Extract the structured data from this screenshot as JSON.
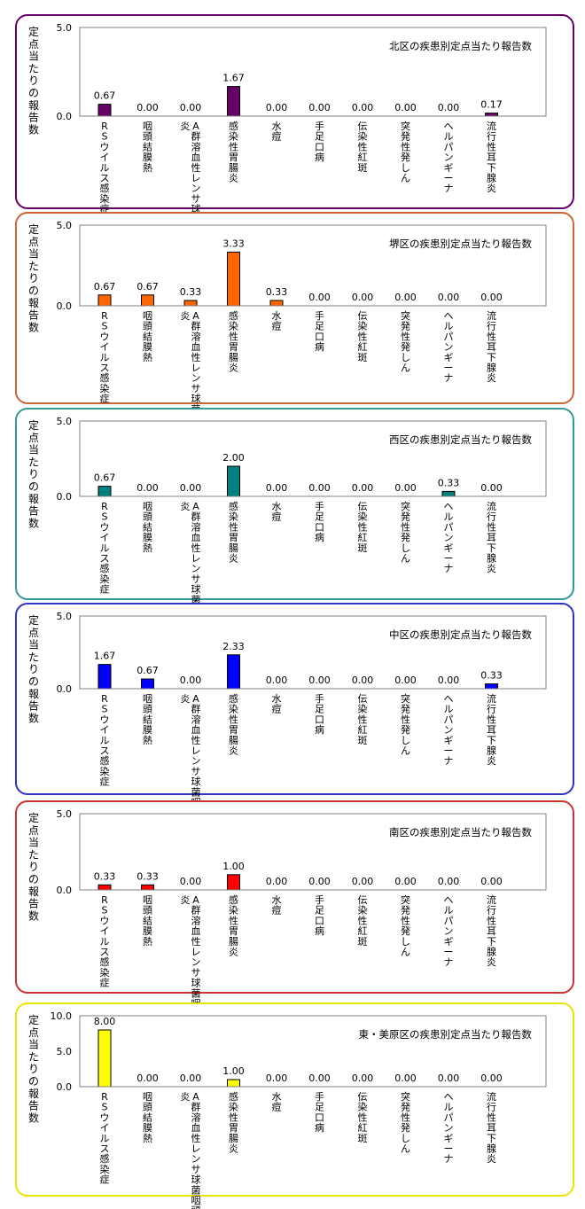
{
  "chart_data": [
    {
      "type": "bar",
      "title": "北区の疾患別定点当たり報告数",
      "ylabel": "定点当たりの報告数",
      "color": "#660066",
      "ylim": [
        0,
        5.0
      ],
      "yticks": [
        "0.0",
        "5.0"
      ],
      "categories": [
        "RSウイルス感染症",
        "咽頭結膜熱",
        "A群溶血性レンサ球菌咽頭炎",
        "感染性胃腸炎",
        "水痘",
        "手足口病",
        "伝染性紅斑",
        "突発性発しん",
        "ヘルパンギーナ",
        "流行性耳下腺炎"
      ],
      "values": [
        0.67,
        0.0,
        0.0,
        1.67,
        0.0,
        0.0,
        0.0,
        0.0,
        0.0,
        0.17
      ],
      "value_labels": [
        "0.67",
        "0.00",
        "0.00",
        "1.67",
        "0.00",
        "0.00",
        "0.00",
        "0.00",
        "0.00",
        "0.17"
      ]
    },
    {
      "type": "bar",
      "title": "堺区の疾患別定点当たり報告数",
      "ylabel": "定点当たりの報告数",
      "color": "#ff6600",
      "ylim": [
        0,
        5.0
      ],
      "yticks": [
        "0.0",
        "5.0"
      ],
      "categories": [
        "RSウイルス感染症",
        "咽頭結膜熱",
        "A群溶血性レンサ球菌咽頭炎",
        "感染性胃腸炎",
        "水痘",
        "手足口病",
        "伝染性紅斑",
        "突発性発しん",
        "ヘルパンギーナ",
        "流行性耳下腺炎"
      ],
      "values": [
        0.67,
        0.67,
        0.33,
        3.33,
        0.33,
        0.0,
        0.0,
        0.0,
        0.0,
        0.0
      ],
      "value_labels": [
        "0.67",
        "0.67",
        "0.33",
        "3.33",
        "0.33",
        "0.00",
        "0.00",
        "0.00",
        "0.00",
        "0.00"
      ]
    },
    {
      "type": "bar",
      "title": "西区の疾患別定点当たり報告数",
      "ylabel": "定点当たりの報告数",
      "color": "#008080",
      "ylim": [
        0,
        5.0
      ],
      "yticks": [
        "0.0",
        "5.0"
      ],
      "categories": [
        "RSウイルス感染症",
        "咽頭結膜熱",
        "A群溶血性レンサ球菌咽頭炎",
        "感染性胃腸炎",
        "水痘",
        "手足口病",
        "伝染性紅斑",
        "突発性発しん",
        "ヘルパンギーナ",
        "流行性耳下腺炎"
      ],
      "values": [
        0.67,
        0.0,
        0.0,
        2.0,
        0.0,
        0.0,
        0.0,
        0.0,
        0.33,
        0.0
      ],
      "value_labels": [
        "0.67",
        "0.00",
        "0.00",
        "2.00",
        "0.00",
        "0.00",
        "0.00",
        "0.00",
        "0.33",
        "0.00"
      ]
    },
    {
      "type": "bar",
      "title": "中区の疾患別定点当たり報告数",
      "ylabel": "定点当たりの報告数",
      "color": "#0000ff",
      "ylim": [
        0,
        5.0
      ],
      "yticks": [
        "0.0",
        "5.0"
      ],
      "categories": [
        "RSウイルス感染症",
        "咽頭結膜熱",
        "A群溶血性レンサ球菌咽頭炎",
        "感染性胃腸炎",
        "水痘",
        "手足口病",
        "伝染性紅斑",
        "突発性発しん",
        "ヘルパンギーナ",
        "流行性耳下腺炎"
      ],
      "values": [
        1.67,
        0.67,
        0.0,
        2.33,
        0.0,
        0.0,
        0.0,
        0.0,
        0.0,
        0.33
      ],
      "value_labels": [
        "1.67",
        "0.67",
        "0.00",
        "2.33",
        "0.00",
        "0.00",
        "0.00",
        "0.00",
        "0.00",
        "0.33"
      ]
    },
    {
      "type": "bar",
      "title": "南区の疾患別定点当たり報告数",
      "ylabel": "定点当たりの報告数",
      "color": "#ff0000",
      "ylim": [
        0,
        5.0
      ],
      "yticks": [
        "0.0",
        "5.0"
      ],
      "categories": [
        "RSウイルス感染症",
        "咽頭結膜熱",
        "A群溶血性レンサ球菌咽頭炎",
        "感染性胃腸炎",
        "水痘",
        "手足口病",
        "伝染性紅斑",
        "突発性発しん",
        "ヘルパンギーナ",
        "流行性耳下腺炎"
      ],
      "values": [
        0.33,
        0.33,
        0.0,
        1.0,
        0.0,
        0.0,
        0.0,
        0.0,
        0.0,
        0.0
      ],
      "value_labels": [
        "0.33",
        "0.33",
        "0.00",
        "1.00",
        "0.00",
        "0.00",
        "0.00",
        "0.00",
        "0.00",
        "0.00"
      ]
    },
    {
      "type": "bar",
      "title": "東・美原区の疾患別定点当たり報告数",
      "ylabel": "定点当たりの報告数",
      "color": "#ffff00",
      "ylim": [
        0,
        10.0
      ],
      "yticks": [
        "0.0",
        "5.0",
        "10.0"
      ],
      "categories": [
        "RSウイルス感染症",
        "咽頭結膜熱",
        "A群溶血性レンサ球菌咽頭炎",
        "感染性胃腸炎",
        "水痘",
        "手足口病",
        "伝染性紅斑",
        "突発性発しん",
        "ヘルパンギーナ",
        "流行性耳下腺炎"
      ],
      "values": [
        8.0,
        0.0,
        0.0,
        1.0,
        0.0,
        0.0,
        0.0,
        0.0,
        0.0,
        0.0
      ],
      "value_labels": [
        "8.00",
        "0.00",
        "0.00",
        "1.00",
        "0.00",
        "0.00",
        "0.00",
        "0.00",
        "0.00",
        "0.00"
      ]
    }
  ],
  "panel_borders": [
    "#660066",
    "#cc6633",
    "#339999",
    "#3333cc",
    "#cc3333",
    "#e6e600"
  ]
}
